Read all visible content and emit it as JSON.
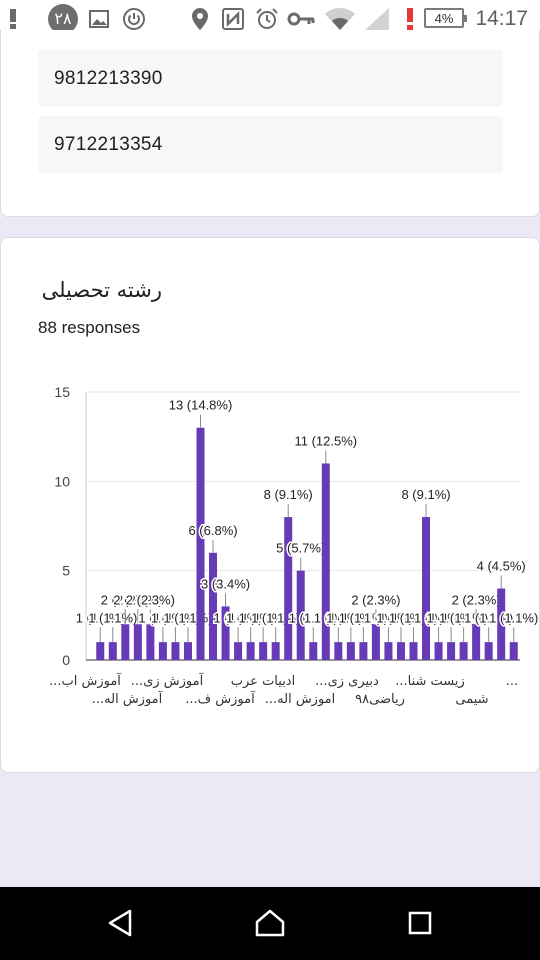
{
  "status_bar": {
    "time": "14:17",
    "battery": "4%",
    "notification_badge": "۲۸",
    "icons": [
      "alert-icon",
      "notification-badge-icon",
      "image-icon",
      "power-icon",
      "location-icon",
      "nfc-icon",
      "alarm-icon",
      "key-icon",
      "wifi-icon",
      "signal-icon",
      "battery-warning-icon",
      "battery-icon"
    ]
  },
  "previous_answers": [
    "9812213390",
    "9712213354"
  ],
  "question": {
    "title": "رشته تحصیلی",
    "responses": "88 responses"
  },
  "chart_data": {
    "type": "bar",
    "color": "#673ab7",
    "ylim": [
      0,
      15
    ],
    "yticks": [
      "0",
      "5",
      "10",
      "15"
    ],
    "values": [
      1,
      1,
      2,
      2,
      2,
      1,
      1,
      1,
      13,
      6,
      3,
      1,
      1,
      1,
      1,
      8,
      5,
      1,
      11,
      1,
      1,
      1,
      2,
      1,
      1,
      1,
      8,
      1,
      1,
      1,
      2,
      1,
      4,
      1
    ],
    "value_labels": [
      "1 (1.1%)",
      "1 (1.1%)",
      "2 (2.3%)",
      "2 (2.3%)",
      "2 (2.3%)",
      "1 (1.1%)",
      "1 (1.1%)",
      "1 (1.1%)",
      "13 (14.8%)",
      "6 (6.8%)",
      "3 (3.4%)",
      "1 (1.1%)",
      "1 (1.1%)",
      "1 (1.1%)",
      "1 (1.1%)",
      "8 (9.1%)",
      "5 (5.7%)",
      "1 (1.1%)",
      "11 (12.5%)",
      "1 (1.1%)",
      "1 (1.1%)",
      "1 (1.1%)",
      "2 (2.3%)",
      "1 (1.1%)",
      "1 (1.1%)",
      "1 (1.1%)",
      "8 (9.1%)",
      "1 (1.1%)",
      "1 (1.1%)",
      "1 (1.1%)",
      "2 (2.3%)",
      "1 (1.1%)",
      "4 (4.5%)",
      "1 (1.1%)"
    ],
    "x_tick_labels_row1": [
      "...آموزش اب",
      "...آموزش زی",
      "ادبیات عرب",
      "...دبیری زی",
      "...زیست شنا",
      "..."
    ],
    "x_tick_labels_row2": [
      "...آموزش اله",
      "...آموزش ف",
      "...اموزش اله",
      "ریاضی۹۸",
      "شیمی"
    ]
  },
  "nav": {
    "back": "back-icon",
    "home": "home-icon",
    "recents": "recents-icon"
  }
}
